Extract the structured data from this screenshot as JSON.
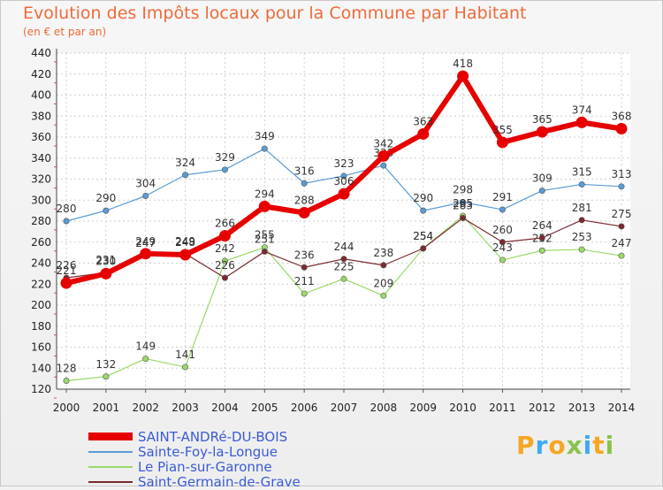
{
  "title": "Evolution des Impôts locaux pour la Commune par Habitant",
  "subtitle": "(en € et par an)",
  "logo": {
    "text": "Proxiti",
    "colors": [
      "#f5a623",
      "#3fa9f5",
      "#8bc34a"
    ]
  },
  "chart_data": {
    "type": "line",
    "categories": [
      "2000",
      "2001",
      "2002",
      "2003",
      "2004",
      "2005",
      "2006",
      "2007",
      "2008",
      "2009",
      "2010",
      "2011",
      "2012",
      "2013",
      "2014"
    ],
    "ylim": [
      120,
      440
    ],
    "yticks": [
      120,
      140,
      160,
      180,
      200,
      220,
      240,
      260,
      280,
      300,
      320,
      340,
      360,
      380,
      400,
      420,
      440
    ],
    "grid": true,
    "legend": "bottom-left",
    "series": [
      {
        "name": "Sainte-Foy-la-Longue",
        "color": "#5b9bd5",
        "width": 1.2,
        "values": [
          280,
          290,
          304,
          324,
          329,
          349,
          316,
          323,
          333,
          290,
          298,
          291,
          309,
          315,
          313
        ],
        "labels": [
          "280",
          "290",
          "304",
          "324",
          "329",
          "349",
          "316",
          "323",
          "333",
          "290",
          "298",
          "291",
          "309",
          "315",
          "313"
        ]
      },
      {
        "name": "Le Pian-sur-Garonne",
        "color": "#9bd86a",
        "width": 1.2,
        "values": [
          128,
          132,
          149,
          141,
          242,
          255,
          211,
          225,
          209,
          254,
          285,
          243,
          252,
          253,
          247
        ],
        "labels": [
          "128",
          "132",
          "149",
          "141",
          "242",
          "255",
          "211",
          "225",
          "209",
          "254",
          "285",
          "243",
          "252",
          "253",
          "247"
        ]
      },
      {
        "name": "Saint-Germain-de-Grave",
        "color": "#7a2a30",
        "width": 1.2,
        "values": [
          226,
          231,
          247,
          249,
          226,
          251,
          236,
          244,
          238,
          254,
          283,
          260,
          264,
          281,
          275
        ],
        "labels": [
          "226",
          "231",
          "247",
          "249",
          "226",
          "251",
          "236",
          "244",
          "238",
          "254",
          "283",
          "260",
          "264",
          "281",
          "275"
        ]
      },
      {
        "name": "SAINT-ANDRé-DU-BOIS",
        "color": "#e60000",
        "width": 6,
        "values": [
          221,
          230,
          249,
          248,
          266,
          294,
          288,
          306,
          342,
          363,
          418,
          355,
          365,
          374,
          368
        ],
        "labels": [
          "221",
          "230",
          "249",
          "248",
          "266",
          "294",
          "288",
          "306",
          "342",
          "363",
          "418",
          "355",
          "365",
          "374",
          "368"
        ]
      }
    ],
    "legend_order": [
      "SAINT-ANDRé-DU-BOIS",
      "Sainte-Foy-la-Longue",
      "Le Pian-sur-Garonne",
      "Saint-Germain-de-Grave"
    ]
  }
}
